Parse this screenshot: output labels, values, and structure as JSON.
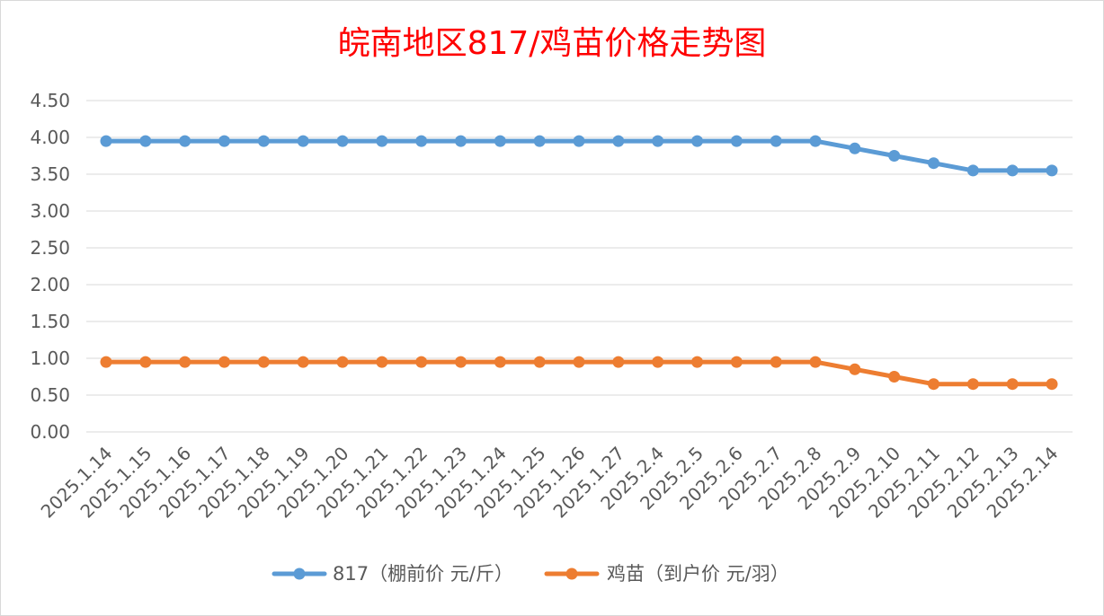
{
  "colors": {
    "background": "#ffffff",
    "frame": "#d9d9d9",
    "gridline": "#d9d9d9",
    "title": "#ff0000",
    "axis_text": "#595959",
    "series_817": "#5b9bd5",
    "series_chick": "#ed7d31"
  },
  "chart_data": {
    "type": "line",
    "title": "皖南地区817/鸡苗价格走势图",
    "xlabel": "",
    "ylabel": "",
    "ylim": [
      0,
      4.5
    ],
    "yticks": [
      "0.00",
      "0.50",
      "1.00",
      "1.50",
      "2.00",
      "2.50",
      "3.00",
      "3.50",
      "4.00",
      "4.50"
    ],
    "grid": true,
    "legend_position": "bottom",
    "categories": [
      "2025.1.14",
      "2025.1.15",
      "2025.1.16",
      "2025.1.17",
      "2025.1.18",
      "2025.1.19",
      "2025.1.20",
      "2025.1.21",
      "2025.1.22",
      "2025.1.23",
      "2025.1.24",
      "2025.1.25",
      "2025.1.26",
      "2025.1.27",
      "2025.2.4",
      "2025.2.5",
      "2025.2.6",
      "2025.2.7",
      "2025.2.8",
      "2025.2.9",
      "2025.2.10",
      "2025.2.11",
      "2025.2.12",
      "2025.2.13",
      "2025.2.14"
    ],
    "series": [
      {
        "name": "817（棚前价 元/斤）",
        "color": "#5b9bd5",
        "values": [
          3.95,
          3.95,
          3.95,
          3.95,
          3.95,
          3.95,
          3.95,
          3.95,
          3.95,
          3.95,
          3.95,
          3.95,
          3.95,
          3.95,
          3.95,
          3.95,
          3.95,
          3.95,
          3.95,
          3.85,
          3.75,
          3.65,
          3.55,
          3.55,
          3.55
        ]
      },
      {
        "name": "鸡苗（到户价 元/羽）",
        "color": "#ed7d31",
        "values": [
          0.95,
          0.95,
          0.95,
          0.95,
          0.95,
          0.95,
          0.95,
          0.95,
          0.95,
          0.95,
          0.95,
          0.95,
          0.95,
          0.95,
          0.95,
          0.95,
          0.95,
          0.95,
          0.95,
          0.85,
          0.75,
          0.65,
          0.65,
          0.65,
          0.65
        ]
      }
    ]
  }
}
